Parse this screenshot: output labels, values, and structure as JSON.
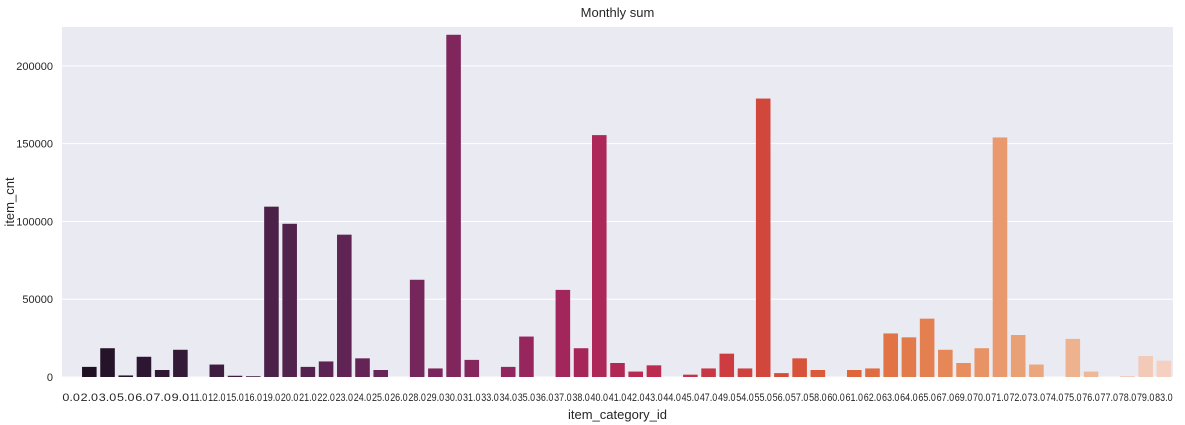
{
  "chart_data": {
    "type": "bar",
    "title": "Monthly sum",
    "xlabel": "item_category_id",
    "ylabel": "item_cnt",
    "ylim": [
      0,
      225000
    ],
    "yticks": [
      0,
      50000,
      100000,
      150000,
      200000
    ],
    "ytick_labels": [
      "0",
      "50000",
      "100000",
      "150000",
      "200000"
    ],
    "grid": true,
    "background_color": "#eaeaf2",
    "categories": [
      "0.0",
      "2.0",
      "3.0",
      "5.0",
      "6.0",
      "7.0",
      "9.0",
      "11.0",
      "12.0",
      "15.0",
      "16.0",
      "19.0",
      "20.0",
      "21.0",
      "22.0",
      "23.0",
      "24.0",
      "25.0",
      "26.0",
      "28.0",
      "29.0",
      "30.0",
      "31.0",
      "33.0",
      "34.0",
      "35.0",
      "36.0",
      "37.0",
      "38.0",
      "40.0",
      "41.0",
      "42.0",
      "43.0",
      "44.0",
      "45.0",
      "47.0",
      "49.0",
      "54.0",
      "55.0",
      "56.0",
      "57.0",
      "58.0",
      "60.0",
      "61.0",
      "62.0",
      "63.0",
      "64.0",
      "65.0",
      "67.0",
      "69.0",
      "70.0",
      "71.0",
      "72.0",
      "73.0",
      "74.0",
      "75.0",
      "76.0",
      "77.0",
      "78.0",
      "79.0",
      "83.0"
    ],
    "values": [
      0,
      6500,
      18500,
      1000,
      13000,
      4500,
      17500,
      0,
      8000,
      800,
      500,
      109500,
      98500,
      6500,
      10000,
      91500,
      12000,
      4500,
      0,
      62500,
      5500,
      220000,
      11000,
      0,
      6500,
      26000,
      0,
      56000,
      18500,
      155500,
      9000,
      3500,
      7500,
      0,
      1500,
      5500,
      15000,
      5500,
      179000,
      2500,
      12000,
      4500,
      0,
      4500,
      5500,
      28000,
      25500,
      37500,
      17500,
      9000,
      18500,
      154000,
      27000,
      8000,
      0,
      24500,
      3500,
      0,
      500,
      13500,
      10500
    ],
    "colors": [
      "#1a0f1e",
      "#1f1123",
      "#241329",
      "#28152d",
      "#2c1631",
      "#301835",
      "#351a38",
      "#391b3c",
      "#3e1d40",
      "#421e43",
      "#472046",
      "#4b2149",
      "#50224c",
      "#55224f",
      "#5a2352",
      "#5f2454",
      "#642456",
      "#6a2558",
      "#6f255a",
      "#75265b",
      "#7a265c",
      "#80265d",
      "#86265e",
      "#8b265e",
      "#91265e",
      "#97265e",
      "#9c265d",
      "#a2265c",
      "#a7265a",
      "#ad2758",
      "#b22855",
      "#b72a52",
      "#bc2c4f",
      "#c02f4b",
      "#c43348",
      "#c83744",
      "#cc3c41",
      "#cf413e",
      "#d2473c",
      "#d54d3a",
      "#d75339",
      "#da5a39",
      "#dc603a",
      "#de663d",
      "#e06d41",
      "#e17345",
      "#e37a4a",
      "#e48050",
      "#e68757",
      "#e78d5e",
      "#e89365",
      "#e9996d",
      "#eaa075",
      "#eba67d",
      "#ecac86",
      "#eeb28f",
      "#efb899",
      "#f0bea3",
      "#f2c4ad",
      "#f3cab7",
      "#f5d0c1"
    ]
  }
}
